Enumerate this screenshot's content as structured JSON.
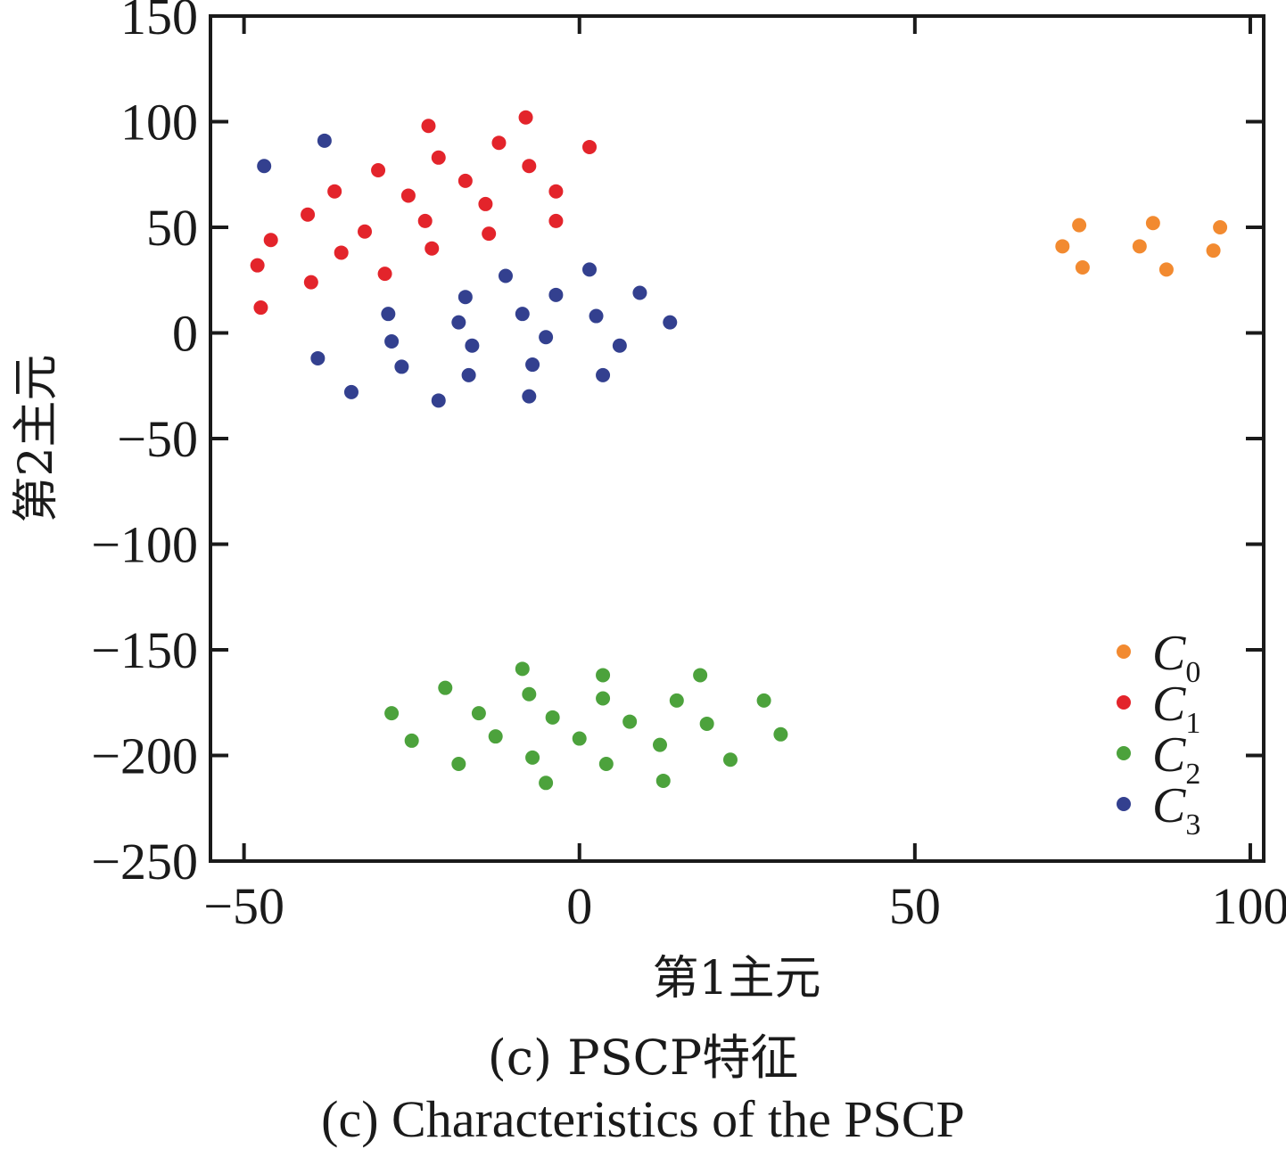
{
  "chart_data": {
    "type": "scatter",
    "xlabel": "第1主元",
    "ylabel": "第2主元",
    "xlim": [
      -55,
      102
    ],
    "ylim": [
      -250,
      150
    ],
    "xticks": [
      -50,
      0,
      50,
      100
    ],
    "yticks": [
      -250,
      -200,
      -150,
      -100,
      -50,
      0,
      50,
      100,
      150
    ],
    "grid": false,
    "legend_position": "bottom-right",
    "series": [
      {
        "name": "C0",
        "label_main": "C",
        "label_sub": "0",
        "color": "#f28a30",
        "points": [
          [
            72,
            41
          ],
          [
            74.5,
            51
          ],
          [
            75,
            31
          ],
          [
            83.5,
            41
          ],
          [
            85.5,
            52
          ],
          [
            87.5,
            30
          ],
          [
            94.5,
            39
          ],
          [
            95.5,
            50
          ]
        ]
      },
      {
        "name": "C1",
        "label_main": "C",
        "label_sub": "1",
        "color": "#e3242b",
        "points": [
          [
            -48,
            32
          ],
          [
            -47.5,
            12
          ],
          [
            -46,
            44
          ],
          [
            -40.5,
            56
          ],
          [
            -40,
            24
          ],
          [
            -36.5,
            67
          ],
          [
            -35.5,
            38
          ],
          [
            -32,
            48
          ],
          [
            -30,
            77
          ],
          [
            -29,
            28
          ],
          [
            -25.5,
            65
          ],
          [
            -23,
            53
          ],
          [
            -22.5,
            98
          ],
          [
            -22,
            40
          ],
          [
            -21,
            83
          ],
          [
            -17,
            72
          ],
          [
            -12,
            90
          ],
          [
            -14,
            61
          ],
          [
            -13.5,
            47
          ],
          [
            -8,
            102
          ],
          [
            -7.5,
            79
          ],
          [
            -3.5,
            67
          ],
          [
            -3.5,
            53
          ],
          [
            1.5,
            88
          ]
        ]
      },
      {
        "name": "C2",
        "label_main": "C",
        "label_sub": "2",
        "color": "#4ca23c",
        "points": [
          [
            -28,
            -180
          ],
          [
            -25,
            -193
          ],
          [
            -20,
            -168
          ],
          [
            -18,
            -204
          ],
          [
            -15,
            -180
          ],
          [
            -12.5,
            -191
          ],
          [
            -8.5,
            -159
          ],
          [
            -7.5,
            -171
          ],
          [
            -7,
            -201
          ],
          [
            -5,
            -213
          ],
          [
            -4,
            -182
          ],
          [
            0,
            -192
          ],
          [
            3.5,
            -162
          ],
          [
            3.5,
            -173
          ],
          [
            4,
            -204
          ],
          [
            7.5,
            -184
          ],
          [
            12,
            -195
          ],
          [
            12.5,
            -212
          ],
          [
            14.5,
            -174
          ],
          [
            18,
            -162
          ],
          [
            19,
            -185
          ],
          [
            22.5,
            -202
          ],
          [
            27.5,
            -174
          ],
          [
            30,
            -190
          ]
        ]
      },
      {
        "name": "C3",
        "label_main": "C",
        "label_sub": "3",
        "color": "#33408f",
        "points": [
          [
            -47,
            79
          ],
          [
            -39,
            -12
          ],
          [
            -38,
            91
          ],
          [
            -34,
            -28
          ],
          [
            -28.5,
            9
          ],
          [
            -28,
            -4
          ],
          [
            -26.5,
            -16
          ],
          [
            -21,
            -32
          ],
          [
            -18,
            5
          ],
          [
            -17,
            17
          ],
          [
            -16.5,
            -20
          ],
          [
            -16,
            -6
          ],
          [
            -11,
            27
          ],
          [
            -8.5,
            9
          ],
          [
            -7,
            -15
          ],
          [
            -7.5,
            -30
          ],
          [
            -5,
            -2
          ],
          [
            -3.5,
            18
          ],
          [
            1.5,
            30
          ],
          [
            2.5,
            8
          ],
          [
            3.5,
            -20
          ],
          [
            6,
            -6
          ],
          [
            9,
            19
          ],
          [
            13.5,
            5
          ]
        ]
      }
    ]
  },
  "captions": {
    "cn": "(c)  PSCP特征",
    "en": "(c)  Characteristics of the PSCP"
  }
}
